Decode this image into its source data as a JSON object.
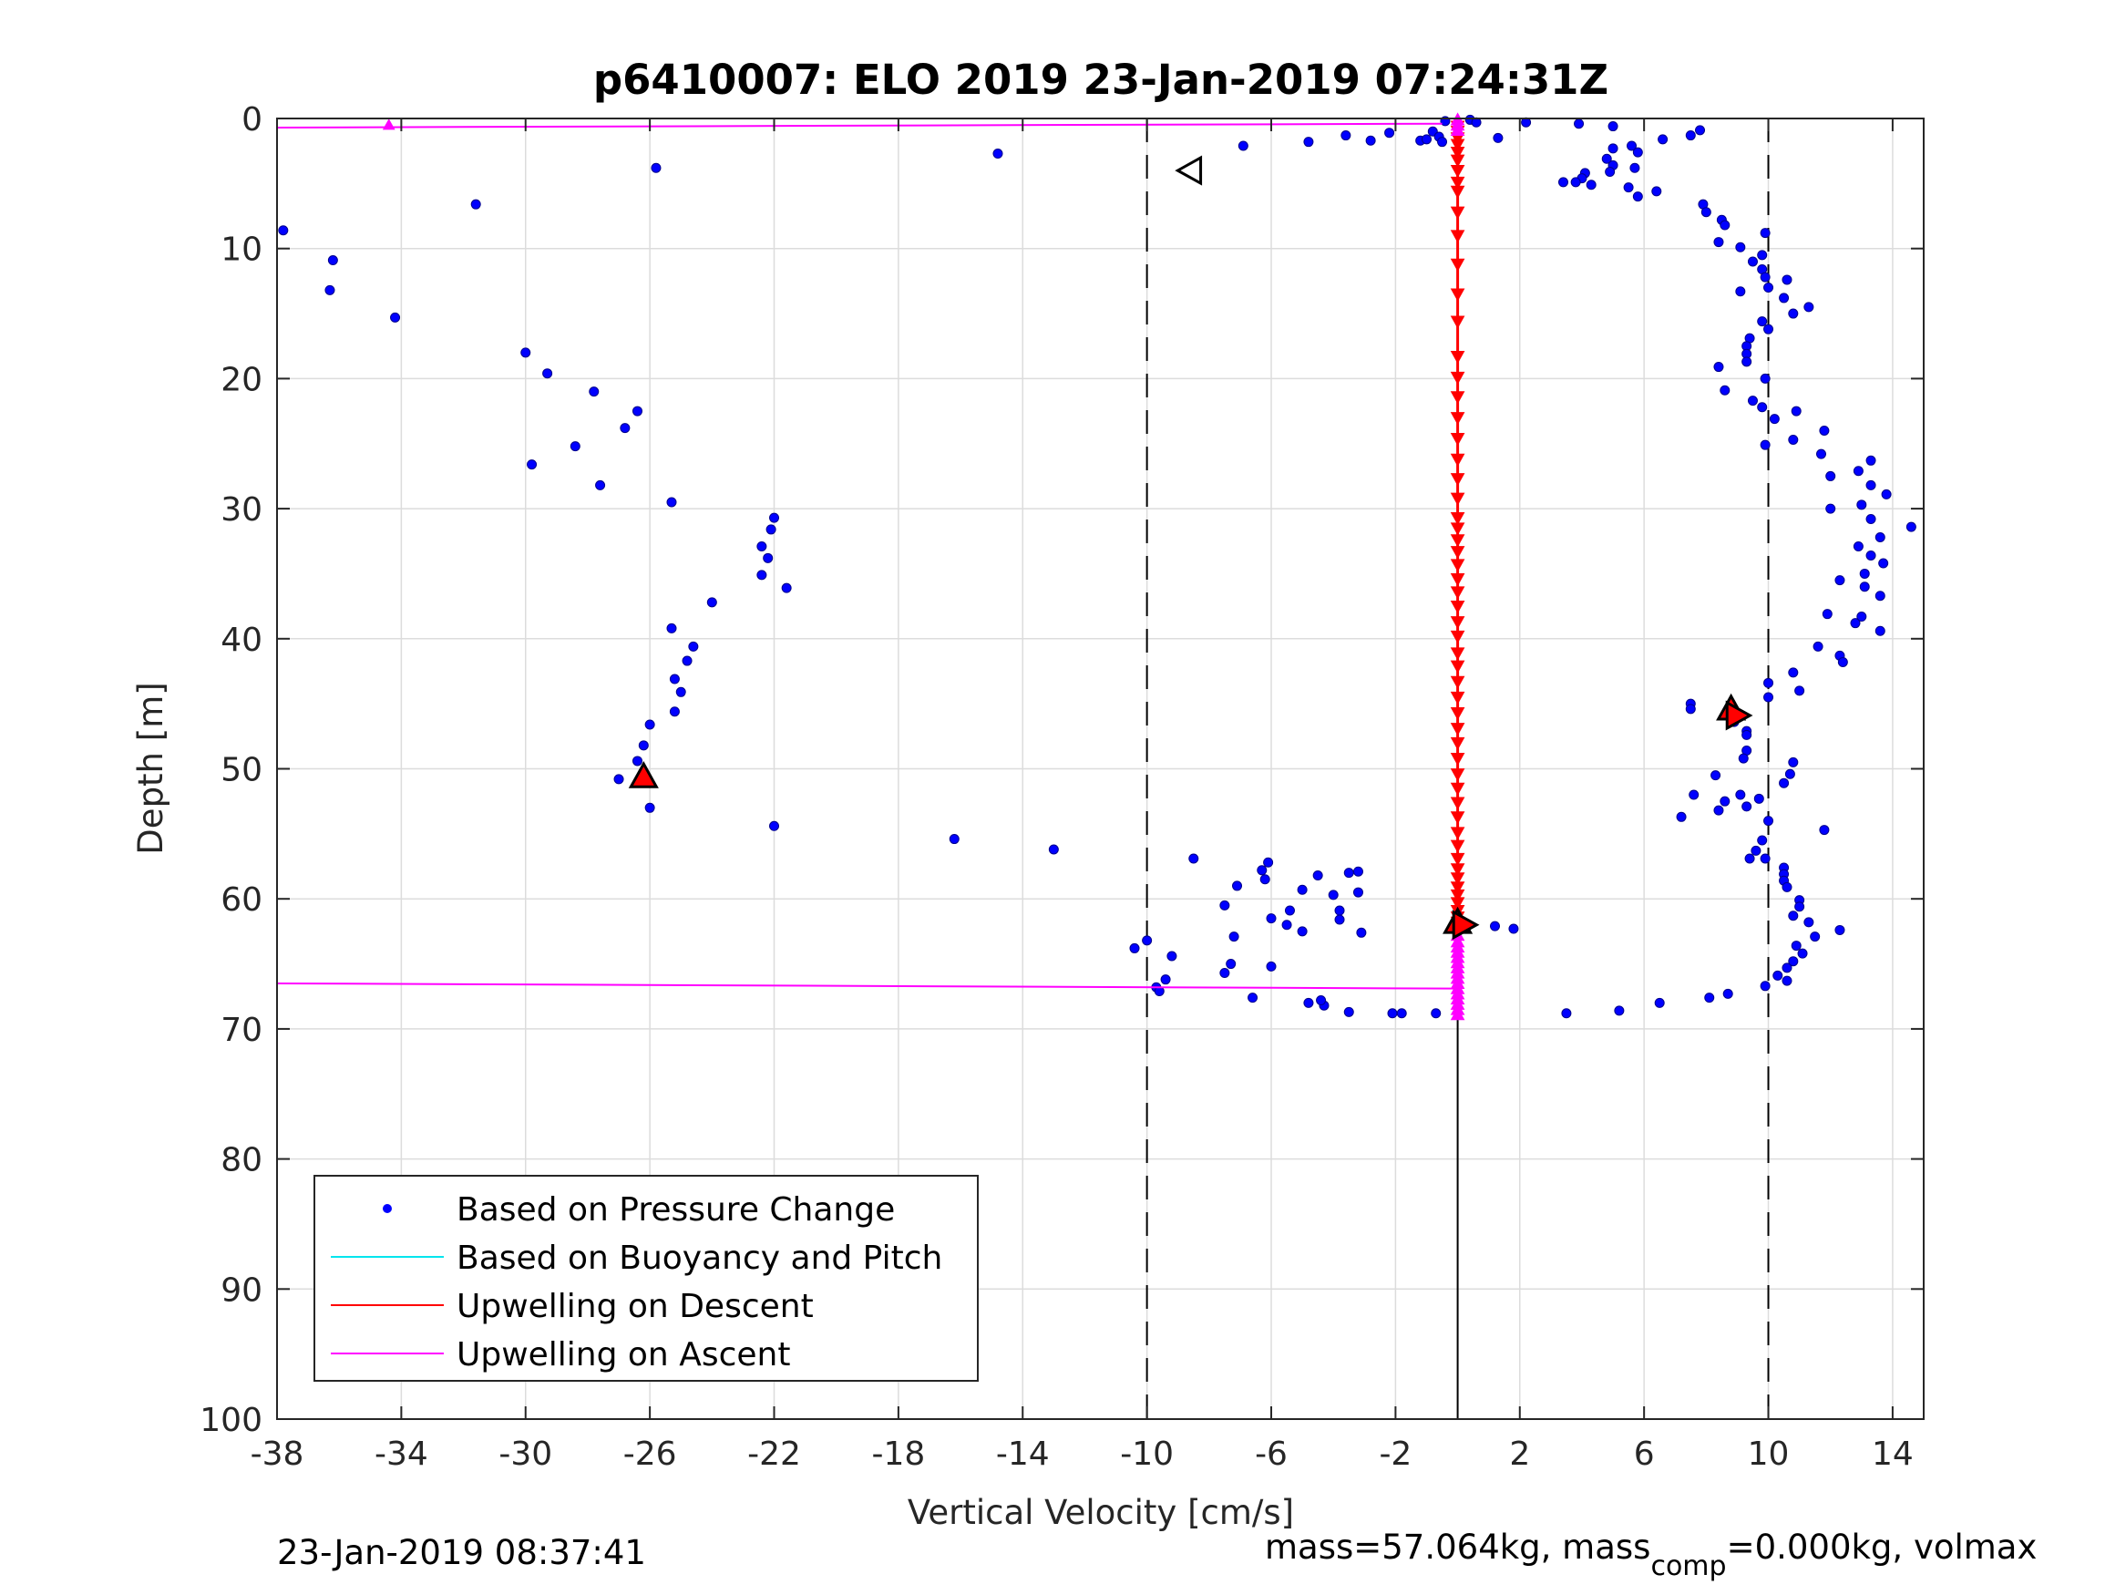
{
  "chart_data": {
    "type": "scatter",
    "title": "p6410007: ELO 2019 23-Jan-2019 07:24:31Z",
    "xlabel": "Vertical Velocity [cm/s]",
    "ylabel": "Depth [m]",
    "xlim": [
      -38,
      15
    ],
    "ylim": [
      0,
      100
    ],
    "y_reversed": true,
    "grid": true,
    "xticks": [
      -38,
      -34,
      -30,
      -26,
      -22,
      -18,
      -14,
      -10,
      -6,
      -2,
      2,
      6,
      10,
      14
    ],
    "yticks": [
      0,
      10,
      20,
      30,
      40,
      50,
      60,
      70,
      80,
      90,
      100
    ],
    "legend_position": "bottom-left",
    "legend": [
      {
        "label": "Based on Pressure Change",
        "color": "#0000ff",
        "marker": "dot"
      },
      {
        "label": "Based on Buoyancy and Pitch",
        "color": "#00e5ee",
        "marker": "line"
      },
      {
        "label": "Upwelling on Descent",
        "color": "#ff0000",
        "marker": "line"
      },
      {
        "label": "Upwelling on Ascent",
        "color": "#ff00ff",
        "marker": "line"
      }
    ],
    "reference_lines": {
      "dashed_x": [
        -10,
        10
      ],
      "solid_x": [
        0
      ]
    },
    "series": [
      {
        "name": "Based on Pressure Change",
        "color": "#0000ff",
        "points": [
          [
            -37.8,
            8.6
          ],
          [
            -36.2,
            10.9
          ],
          [
            -36.3,
            13.2
          ],
          [
            -34.2,
            15.3
          ],
          [
            -31.6,
            6.6
          ],
          [
            -25.8,
            3.8
          ],
          [
            -14.8,
            2.7
          ],
          [
            -30.0,
            18.0
          ],
          [
            -29.3,
            19.6
          ],
          [
            -27.8,
            21.0
          ],
          [
            -26.4,
            22.5
          ],
          [
            -26.8,
            23.8
          ],
          [
            -28.4,
            25.2
          ],
          [
            -29.8,
            26.6
          ],
          [
            -27.6,
            28.2
          ],
          [
            -25.3,
            29.5
          ],
          [
            -22.0,
            30.7
          ],
          [
            -22.1,
            31.6
          ],
          [
            -22.4,
            32.9
          ],
          [
            -22.2,
            33.8
          ],
          [
            -22.4,
            35.1
          ],
          [
            -21.6,
            36.1
          ],
          [
            -24.0,
            37.2
          ],
          [
            -25.3,
            39.2
          ],
          [
            -24.6,
            40.6
          ],
          [
            -24.8,
            41.7
          ],
          [
            -25.0,
            44.1
          ],
          [
            -25.2,
            43.1
          ],
          [
            -25.2,
            45.6
          ],
          [
            -26.0,
            46.6
          ],
          [
            -26.2,
            48.2
          ],
          [
            -26.4,
            49.4
          ],
          [
            -27.0,
            50.8
          ],
          [
            -26.0,
            53.0
          ],
          [
            -22.0,
            54.4
          ],
          [
            -16.2,
            55.4
          ],
          [
            -13.0,
            56.2
          ],
          [
            -8.5,
            56.9
          ],
          [
            -6.1,
            57.2
          ],
          [
            -6.3,
            57.8
          ],
          [
            -6.2,
            58.5
          ],
          [
            -7.1,
            59.0
          ],
          [
            -4.5,
            58.2
          ],
          [
            -3.5,
            58.0
          ],
          [
            -3.2,
            57.9
          ],
          [
            -5.0,
            59.3
          ],
          [
            -4.0,
            59.7
          ],
          [
            -3.2,
            59.5
          ],
          [
            -7.5,
            60.5
          ],
          [
            -5.4,
            60.9
          ],
          [
            -3.8,
            60.9
          ],
          [
            -6.0,
            61.5
          ],
          [
            -5.5,
            62.0
          ],
          [
            -5.0,
            62.5
          ],
          [
            -3.8,
            61.6
          ],
          [
            -3.1,
            62.6
          ],
          [
            -7.2,
            62.9
          ],
          [
            -9.2,
            64.4
          ],
          [
            -10.4,
            63.8
          ],
          [
            -10.0,
            63.2
          ],
          [
            -7.3,
            65.0
          ],
          [
            -7.5,
            65.7
          ],
          [
            -6.0,
            65.2
          ],
          [
            -9.4,
            66.2
          ],
          [
            -9.7,
            66.8
          ],
          [
            -9.6,
            67.1
          ],
          [
            -6.6,
            67.6
          ],
          [
            -4.8,
            68.0
          ],
          [
            -4.3,
            68.2
          ],
          [
            -3.5,
            68.7
          ],
          [
            -4.4,
            67.8
          ],
          [
            -2.1,
            68.8
          ],
          [
            -1.8,
            68.8
          ],
          [
            -0.7,
            68.8
          ],
          [
            -0.4,
            0.2
          ],
          [
            0.4,
            0.1
          ],
          [
            0.6,
            0.3
          ],
          [
            2.2,
            0.3
          ],
          [
            3.9,
            0.4
          ],
          [
            5.0,
            0.6
          ],
          [
            7.8,
            0.9
          ],
          [
            7.5,
            1.3
          ],
          [
            6.6,
            1.6
          ],
          [
            -1.2,
            1.7
          ],
          [
            -1.0,
            1.6
          ],
          [
            -0.8,
            1.0
          ],
          [
            -0.6,
            1.4
          ],
          [
            -0.5,
            1.8
          ],
          [
            1.3,
            1.5
          ],
          [
            -2.2,
            1.1
          ],
          [
            -2.8,
            1.7
          ],
          [
            -3.6,
            1.3
          ],
          [
            -4.8,
            1.8
          ],
          [
            -6.9,
            2.1
          ],
          [
            5.0,
            2.3
          ],
          [
            5.6,
            2.1
          ],
          [
            5.8,
            2.6
          ],
          [
            4.8,
            3.1
          ],
          [
            5.0,
            3.6
          ],
          [
            4.9,
            4.1
          ],
          [
            5.7,
            3.8
          ],
          [
            4.1,
            4.2
          ],
          [
            4.0,
            4.6
          ],
          [
            3.8,
            4.9
          ],
          [
            4.3,
            5.1
          ],
          [
            3.4,
            4.9
          ],
          [
            5.5,
            5.3
          ],
          [
            5.8,
            6.0
          ],
          [
            6.4,
            5.6
          ],
          [
            7.9,
            6.6
          ],
          [
            8.0,
            7.2
          ],
          [
            8.5,
            7.8
          ],
          [
            8.6,
            8.2
          ],
          [
            9.9,
            8.8
          ],
          [
            8.4,
            9.5
          ],
          [
            9.1,
            9.9
          ],
          [
            9.8,
            10.5
          ],
          [
            9.5,
            11.0
          ],
          [
            9.8,
            11.6
          ],
          [
            9.9,
            12.2
          ],
          [
            10.6,
            12.4
          ],
          [
            9.1,
            13.3
          ],
          [
            10.0,
            13.0
          ],
          [
            10.5,
            13.8
          ],
          [
            11.3,
            14.5
          ],
          [
            10.8,
            15.0
          ],
          [
            9.8,
            15.6
          ],
          [
            10.0,
            16.2
          ],
          [
            9.4,
            16.9
          ],
          [
            9.3,
            17.5
          ],
          [
            9.3,
            18.1
          ],
          [
            9.3,
            18.7
          ],
          [
            8.4,
            19.1
          ],
          [
            9.9,
            20.0
          ],
          [
            8.6,
            20.9
          ],
          [
            9.5,
            21.7
          ],
          [
            9.8,
            22.2
          ],
          [
            10.9,
            22.5
          ],
          [
            10.2,
            23.1
          ],
          [
            11.8,
            24.0
          ],
          [
            10.8,
            24.7
          ],
          [
            9.9,
            25.1
          ],
          [
            11.7,
            25.8
          ],
          [
            12.0,
            27.5
          ],
          [
            12.9,
            27.1
          ],
          [
            13.3,
            26.3
          ],
          [
            13.3,
            28.2
          ],
          [
            13.8,
            28.9
          ],
          [
            13.0,
            29.7
          ],
          [
            12.0,
            30.0
          ],
          [
            13.3,
            30.8
          ],
          [
            14.6,
            31.4
          ],
          [
            13.6,
            32.2
          ],
          [
            12.9,
            32.9
          ],
          [
            13.3,
            33.6
          ],
          [
            13.7,
            34.2
          ],
          [
            13.1,
            35.0
          ],
          [
            12.3,
            35.5
          ],
          [
            13.1,
            36.0
          ],
          [
            13.6,
            36.7
          ],
          [
            11.9,
            38.1
          ],
          [
            13.0,
            38.3
          ],
          [
            12.8,
            38.8
          ],
          [
            13.6,
            39.4
          ],
          [
            11.6,
            40.6
          ],
          [
            12.3,
            41.3
          ],
          [
            12.4,
            41.8
          ],
          [
            10.8,
            42.6
          ],
          [
            10.0,
            43.4
          ],
          [
            10.0,
            44.5
          ],
          [
            11.0,
            44.0
          ],
          [
            7.5,
            45.0
          ],
          [
            7.5,
            45.4
          ],
          [
            8.9,
            46.4
          ],
          [
            9.3,
            47.1
          ],
          [
            9.3,
            47.4
          ],
          [
            9.3,
            48.6
          ],
          [
            9.2,
            49.2
          ],
          [
            10.8,
            49.5
          ],
          [
            10.7,
            50.4
          ],
          [
            8.3,
            50.5
          ],
          [
            10.5,
            51.1
          ],
          [
            7.6,
            52.0
          ],
          [
            9.1,
            52.0
          ],
          [
            8.6,
            52.5
          ],
          [
            9.7,
            52.3
          ],
          [
            8.4,
            53.2
          ],
          [
            9.3,
            52.9
          ],
          [
            7.2,
            53.7
          ],
          [
            10.0,
            54.0
          ],
          [
            11.8,
            54.7
          ],
          [
            9.8,
            55.5
          ],
          [
            9.6,
            56.3
          ],
          [
            9.4,
            56.9
          ],
          [
            9.9,
            56.9
          ],
          [
            10.5,
            57.6
          ],
          [
            10.5,
            58.1
          ],
          [
            10.5,
            58.6
          ],
          [
            10.6,
            59.1
          ],
          [
            11.0,
            60.1
          ],
          [
            11.0,
            60.6
          ],
          [
            10.8,
            61.3
          ],
          [
            11.3,
            61.8
          ],
          [
            12.3,
            62.4
          ],
          [
            11.5,
            62.9
          ],
          [
            10.9,
            63.6
          ],
          [
            11.1,
            64.2
          ],
          [
            10.8,
            64.8
          ],
          [
            10.6,
            65.3
          ],
          [
            10.3,
            65.9
          ],
          [
            10.6,
            66.3
          ],
          [
            9.9,
            66.7
          ],
          [
            8.7,
            67.3
          ],
          [
            8.1,
            67.6
          ],
          [
            6.5,
            68.0
          ],
          [
            5.2,
            68.6
          ],
          [
            3.5,
            68.8
          ],
          [
            1.2,
            62.1
          ],
          [
            1.8,
            62.3
          ]
        ]
      },
      {
        "name": "Upwelling on Descent",
        "color": "#ff0000",
        "marker": "triangle-down",
        "x": 0,
        "depths": [
          0.6,
          1.0,
          1.5,
          2.0,
          2.6,
          3.2,
          4.0,
          4.9,
          5.6,
          7.2,
          9.0,
          11.2,
          13.5,
          15.6,
          18.3,
          19.9,
          21.4,
          23.0,
          24.6,
          26.2,
          27.7,
          29.2,
          30.7,
          31.5,
          32.4,
          33.3,
          34.3,
          35.4,
          36.4,
          37.5,
          38.7,
          39.8,
          41.1,
          42.1,
          43.3,
          44.5,
          45.7,
          46.9,
          48.0,
          49.2,
          50.4,
          51.5,
          52.6,
          53.7,
          54.9,
          55.9,
          56.9,
          57.7,
          58.4,
          59.1,
          59.7,
          60.3,
          60.9,
          61.4,
          61.8
        ]
      },
      {
        "name": "Upwelling on Ascent",
        "color": "#ff00ff",
        "marker": "triangle-up",
        "x": 0,
        "depths": [
          0.1,
          0.5,
          0.9,
          62.8,
          63.3,
          63.7,
          64.1,
          64.5,
          64.9,
          65.3,
          65.7,
          66.1,
          66.5,
          66.9,
          67.3,
          67.7,
          68.1,
          68.5,
          68.9
        ],
        "lines": [
          {
            "from": [
              -38,
              0.7
            ],
            "to": [
              -0.5,
              0.4
            ]
          },
          {
            "from": [
              -38,
              66.5
            ],
            "to": [
              0,
              66.9
            ]
          }
        ],
        "extra_markers": [
          [
            -34.4,
            0.5
          ]
        ]
      }
    ],
    "annotations": [
      {
        "type": "triangle-left",
        "x": -8.6,
        "y": 4.0,
        "fill": "none"
      },
      {
        "type": "triangle-up",
        "x": -26.2,
        "y": 50.6,
        "fill": "#ff0000"
      },
      {
        "type": "triangle-up",
        "x": 8.8,
        "y": 45.4,
        "fill": "#ff0000"
      },
      {
        "type": "triangle-right",
        "x": 9.0,
        "y": 45.9,
        "fill": "#ff0000"
      },
      {
        "type": "triangle-up",
        "x": 0.0,
        "y": 61.8,
        "fill": "#ff0000"
      },
      {
        "type": "triangle-right",
        "x": 0.2,
        "y": 62.0,
        "fill": "#ff0000"
      }
    ]
  },
  "footer": {
    "timestamp": "23-Jan-2019 08:37:41",
    "mass_text_a": "mass=57.064kg, mass",
    "mass_sub": "comp",
    "mass_text_b": "=0.000kg, volmax"
  }
}
